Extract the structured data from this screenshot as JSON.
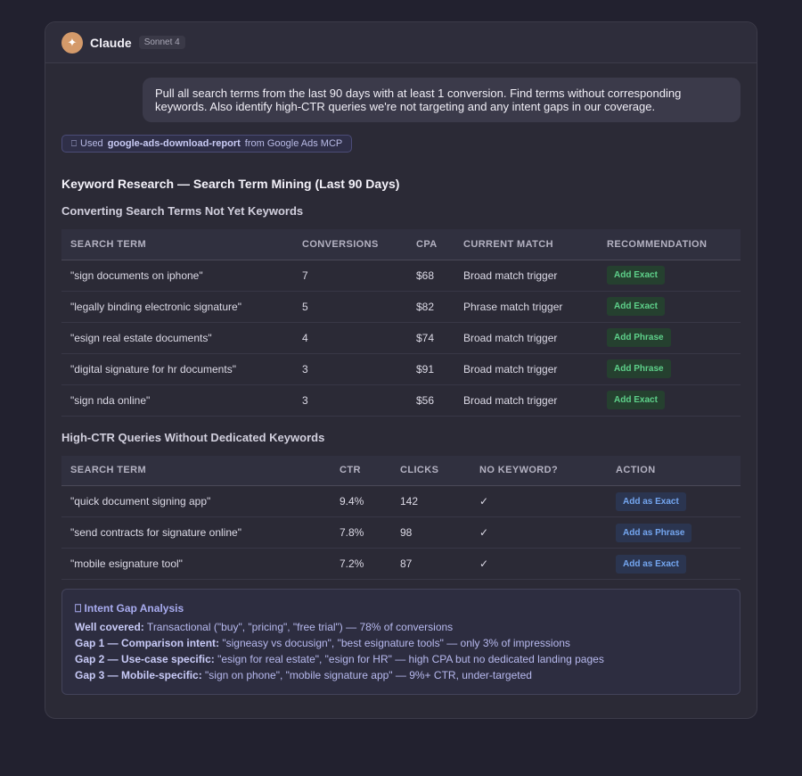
{
  "app": {
    "name": "Claude",
    "model": "Sonnet 4",
    "avatar_glyph": "✦"
  },
  "user_message": "Pull all search terms from the last 90 days with at least 1 conversion. Find terms without corresponding keywords. Also identify high-CTR queries we're not targeting and any intent gaps in our coverage.",
  "tool_use": {
    "icon": "⎕",
    "prefix": "Used",
    "tool": "google-ads-download-report",
    "suffix": "from Google Ads MCP"
  },
  "report_title": "Keyword Research — Search Term Mining (Last 90 Days)",
  "section1": {
    "title": "Converting Search Terms Not Yet Keywords",
    "headers": [
      "SEARCH TERM",
      "CONVERSIONS",
      "CPA",
      "CURRENT MATCH",
      "RECOMMENDATION"
    ],
    "rows": [
      {
        "term": "\"sign documents on iphone\"",
        "conversions": "7",
        "cpa": "$68",
        "match": "Broad match trigger",
        "rec": "Add Exact"
      },
      {
        "term": "\"legally binding electronic signature\"",
        "conversions": "5",
        "cpa": "$82",
        "match": "Phrase match trigger",
        "rec": "Add Exact"
      },
      {
        "term": "\"esign real estate documents\"",
        "conversions": "4",
        "cpa": "$74",
        "match": "Broad match trigger",
        "rec": "Add Phrase"
      },
      {
        "term": "\"digital signature for hr documents\"",
        "conversions": "3",
        "cpa": "$91",
        "match": "Broad match trigger",
        "rec": "Add Phrase"
      },
      {
        "term": "\"sign nda online\"",
        "conversions": "3",
        "cpa": "$56",
        "match": "Broad match trigger",
        "rec": "Add Exact"
      }
    ]
  },
  "section2": {
    "title": "High-CTR Queries Without Dedicated Keywords",
    "headers": [
      "SEARCH TERM",
      "CTR",
      "CLICKS",
      "NO KEYWORD?",
      "ACTION"
    ],
    "rows": [
      {
        "term": "\"quick document signing app\"",
        "ctr": "9.4%",
        "clicks": "142",
        "no_kw": "✓",
        "action": "Add as Exact"
      },
      {
        "term": "\"send contracts for signature online\"",
        "ctr": "7.8%",
        "clicks": "98",
        "no_kw": "✓",
        "action": "Add as Phrase"
      },
      {
        "term": "\"mobile esignature tool\"",
        "ctr": "7.2%",
        "clicks": "87",
        "no_kw": "✓",
        "action": "Add as Exact"
      }
    ]
  },
  "intent_gap": {
    "icon": "⎕",
    "title": "Intent Gap Analysis",
    "lines": [
      {
        "label": "Well covered:",
        "text": " Transactional (\"buy\", \"pricing\", \"free trial\") — 78% of conversions"
      },
      {
        "label": "Gap 1 — Comparison intent:",
        "text": " \"signeasy vs docusign\", \"best esignature tools\" — only 3% of impressions"
      },
      {
        "label": "Gap 2 — Use-case specific:",
        "text": " \"esign for real estate\", \"esign for HR\" — high CPA but no dedicated landing pages"
      },
      {
        "label": "Gap 3 — Mobile-specific:",
        "text": " \"sign on phone\", \"mobile signature app\" — 9%+ CTR, under-targeted"
      }
    ]
  },
  "colors": {
    "accent_green": "#5ed08a",
    "accent_blue": "#74a6f0",
    "accent_purple": "#a9acf0",
    "avatar": "#d49a6a"
  }
}
